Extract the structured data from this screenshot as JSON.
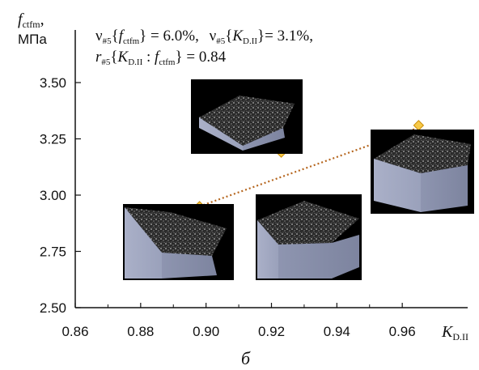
{
  "chart_data": {
    "type": "scatter",
    "panel_label": "б",
    "y_axis_label": {
      "symbol": "f",
      "subscript": "ctfm",
      "suffix": ",",
      "unit": "МПа"
    },
    "x_axis_label": {
      "symbol": "K",
      "subscript": "D.II"
    },
    "xlim": [
      0.86,
      0.98
    ],
    "ylim": [
      2.5,
      3.5
    ],
    "x_ticks": [
      "0.86",
      "0.88",
      "0.90",
      "0.92",
      "0.94",
      "0.96"
    ],
    "y_ticks": [
      "2.50",
      "2.75",
      "3.00",
      "3.25",
      "3.50"
    ],
    "points": [
      {
        "x": 0.898,
        "y": 2.95
      },
      {
        "x": 0.923,
        "y": 3.19
      },
      {
        "x": 0.965,
        "y": 3.31
      }
    ],
    "trendline": {
      "style": "dotted",
      "x": [
        0.898,
        0.965
      ],
      "y": [
        2.95,
        3.3
      ]
    },
    "annotations": [
      {
        "name": "nu",
        "sub": "#5",
        "arg": "f",
        "arg_sub": "ctfm",
        "value": "= 6.0%,"
      },
      {
        "name": "nu",
        "sub": "#5",
        "arg": "K",
        "arg_sub": "D.II",
        "value": "= 3.1%,"
      },
      {
        "name": "r",
        "sub": "#5",
        "arg": "K",
        "arg_sub": "D.II",
        "arg2": "f",
        "arg2_sub": "ctfm",
        "value": "= 0.84"
      }
    ],
    "colors": {
      "point": "#f7c948",
      "point_edge": "#c98a00",
      "trendline": "#b5651d"
    }
  }
}
